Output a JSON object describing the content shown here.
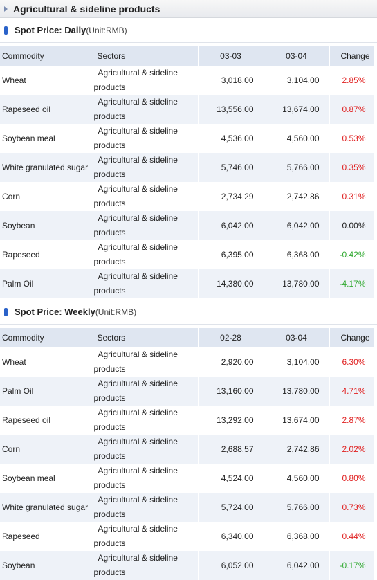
{
  "header": {
    "title": "Agricultural & sideline products"
  },
  "daily": {
    "title": "Spot Price: Daily",
    "unit": "(Unit:RMB)",
    "columns": {
      "commodity": "Commodity",
      "sectors": "Sectors",
      "date1": "03-03",
      "date2": "03-04",
      "change": "Change"
    },
    "rows": [
      {
        "commodity": "Wheat",
        "sector1": "Agricultural & sideline",
        "sector2": "products",
        "v1": "3,018.00",
        "v2": "3,104.00",
        "change": "2.85%",
        "dir": "up"
      },
      {
        "commodity": "Rapeseed oil",
        "sector1": "Agricultural & sideline",
        "sector2": "products",
        "v1": "13,556.00",
        "v2": "13,674.00",
        "change": "0.87%",
        "dir": "up"
      },
      {
        "commodity": "Soybean meal",
        "sector1": "Agricultural & sideline",
        "sector2": "products",
        "v1": "4,536.00",
        "v2": "4,560.00",
        "change": "0.53%",
        "dir": "up"
      },
      {
        "commodity": "White granulated sugar",
        "sector1": "Agricultural & sideline",
        "sector2": "products",
        "v1": "5,746.00",
        "v2": "5,766.00",
        "change": "0.35%",
        "dir": "up"
      },
      {
        "commodity": "Corn",
        "sector1": "Agricultural & sideline",
        "sector2": "products",
        "v1": "2,734.29",
        "v2": "2,742.86",
        "change": "0.31%",
        "dir": "up"
      },
      {
        "commodity": "Soybean",
        "sector1": "Agricultural & sideline",
        "sector2": "products",
        "v1": "6,042.00",
        "v2": "6,042.00",
        "change": "0.00%",
        "dir": "flat"
      },
      {
        "commodity": "Rapeseed",
        "sector1": "Agricultural & sideline",
        "sector2": "products",
        "v1": "6,395.00",
        "v2": "6,368.00",
        "change": "-0.42%",
        "dir": "down"
      },
      {
        "commodity": "Palm Oil",
        "sector1": "Agricultural & sideline",
        "sector2": "products",
        "v1": "14,380.00",
        "v2": "13,780.00",
        "change": "-4.17%",
        "dir": "down"
      }
    ]
  },
  "weekly": {
    "title": "Spot Price: Weekly",
    "unit": "(Unit:RMB)",
    "columns": {
      "commodity": "Commodity",
      "sectors": "Sectors",
      "date1": "02-28",
      "date2": "03-04",
      "change": "Change"
    },
    "rows": [
      {
        "commodity": "Wheat",
        "sector1": "Agricultural & sideline",
        "sector2": "products",
        "v1": "2,920.00",
        "v2": "3,104.00",
        "change": "6.30%",
        "dir": "up"
      },
      {
        "commodity": "Palm Oil",
        "sector1": "Agricultural & sideline",
        "sector2": "products",
        "v1": "13,160.00",
        "v2": "13,780.00",
        "change": "4.71%",
        "dir": "up"
      },
      {
        "commodity": "Rapeseed oil",
        "sector1": "Agricultural & sideline",
        "sector2": "products",
        "v1": "13,292.00",
        "v2": "13,674.00",
        "change": "2.87%",
        "dir": "up"
      },
      {
        "commodity": "Corn",
        "sector1": "Agricultural & sideline",
        "sector2": "products",
        "v1": "2,688.57",
        "v2": "2,742.86",
        "change": "2.02%",
        "dir": "up"
      },
      {
        "commodity": "Soybean meal",
        "sector1": "Agricultural & sideline",
        "sector2": "products",
        "v1": "4,524.00",
        "v2": "4,560.00",
        "change": "0.80%",
        "dir": "up"
      },
      {
        "commodity": "White granulated sugar",
        "sector1": "Agricultural & sideline",
        "sector2": "products",
        "v1": "5,724.00",
        "v2": "5,766.00",
        "change": "0.73%",
        "dir": "up"
      },
      {
        "commodity": "Rapeseed",
        "sector1": "Agricultural & sideline",
        "sector2": "products",
        "v1": "6,340.00",
        "v2": "6,368.00",
        "change": "0.44%",
        "dir": "up"
      },
      {
        "commodity": "Soybean",
        "sector1": "Agricultural & sideline",
        "sector2": "products",
        "v1": "6,052.00",
        "v2": "6,042.00",
        "change": "-0.17%",
        "dir": "down"
      }
    ]
  }
}
